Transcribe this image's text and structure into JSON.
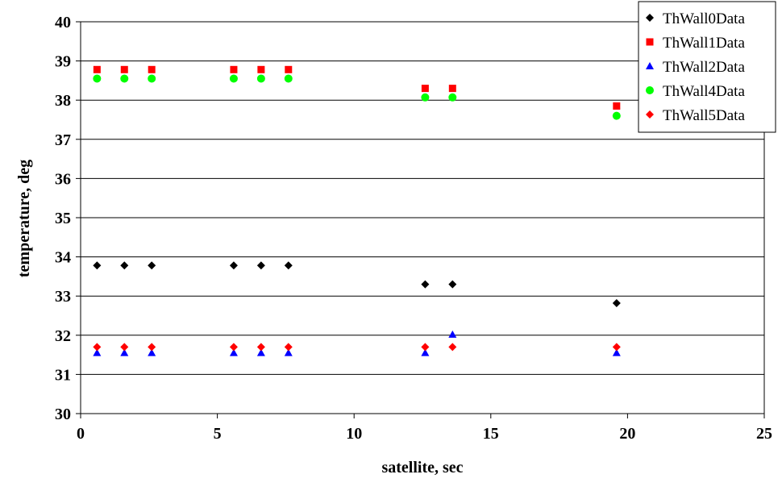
{
  "chart_data": {
    "type": "scatter",
    "title": "",
    "xlabel": "satellite, sec",
    "ylabel": "temperature, deg",
    "xlim": [
      0,
      25
    ],
    "ylim": [
      30,
      40
    ],
    "x_ticks": [
      "0",
      "5",
      "10",
      "15",
      "20",
      "25"
    ],
    "y_ticks": [
      "30",
      "31",
      "32",
      "33",
      "34",
      "35",
      "36",
      "37",
      "38",
      "39",
      "40"
    ],
    "grid": "horizontal",
    "legend_position": "top-right",
    "series": [
      {
        "name": "ThWall0Data",
        "marker": "diamond",
        "color": "#000000",
        "points": [
          [
            0.6,
            33.78
          ],
          [
            1.6,
            33.78
          ],
          [
            2.6,
            33.78
          ],
          [
            5.6,
            33.78
          ],
          [
            6.6,
            33.78
          ],
          [
            7.6,
            33.78
          ],
          [
            12.6,
            33.3
          ],
          [
            13.6,
            33.3
          ],
          [
            19.6,
            32.82
          ]
        ]
      },
      {
        "name": "ThWall1Data",
        "marker": "square",
        "color": "#ff0000",
        "points": [
          [
            0.6,
            38.78
          ],
          [
            1.6,
            38.78
          ],
          [
            2.6,
            38.78
          ],
          [
            5.6,
            38.78
          ],
          [
            6.6,
            38.78
          ],
          [
            7.6,
            38.78
          ],
          [
            12.6,
            38.3
          ],
          [
            13.6,
            38.3
          ],
          [
            19.6,
            37.85
          ]
        ]
      },
      {
        "name": "ThWall2Data",
        "marker": "triangle",
        "color": "#0000ff",
        "points": [
          [
            0.6,
            31.55
          ],
          [
            1.6,
            31.55
          ],
          [
            2.6,
            31.55
          ],
          [
            5.6,
            31.55
          ],
          [
            6.6,
            31.55
          ],
          [
            7.6,
            31.55
          ],
          [
            12.6,
            31.55
          ],
          [
            13.6,
            32.02
          ],
          [
            19.6,
            31.55
          ]
        ]
      },
      {
        "name": "ThWall4Data",
        "marker": "circle",
        "color": "#00ff00",
        "points": [
          [
            0.6,
            38.55
          ],
          [
            1.6,
            38.55
          ],
          [
            2.6,
            38.55
          ],
          [
            5.6,
            38.55
          ],
          [
            6.6,
            38.55
          ],
          [
            7.6,
            38.55
          ],
          [
            12.6,
            38.07
          ],
          [
            13.6,
            38.07
          ],
          [
            19.6,
            37.6
          ]
        ]
      },
      {
        "name": "ThWall5Data",
        "marker": "diamond",
        "color": "#ff0000",
        "points": [
          [
            0.6,
            31.7
          ],
          [
            1.6,
            31.7
          ],
          [
            2.6,
            31.7
          ],
          [
            5.6,
            31.7
          ],
          [
            6.6,
            31.7
          ],
          [
            7.6,
            31.7
          ],
          [
            12.6,
            31.7
          ],
          [
            13.6,
            31.7
          ],
          [
            19.6,
            31.7
          ]
        ]
      }
    ]
  }
}
